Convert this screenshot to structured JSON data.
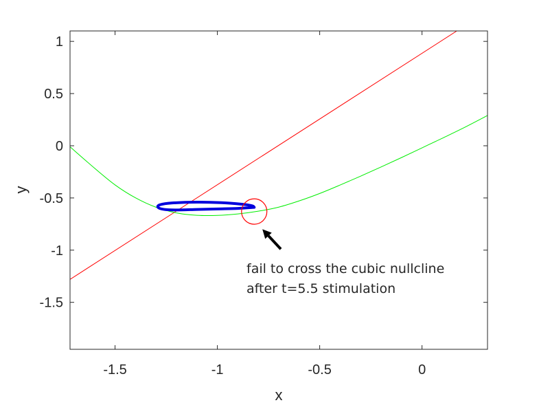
{
  "chart_data": {
    "type": "line",
    "xlabel": "x",
    "ylabel": "y",
    "xlim": [
      -1.72,
      0.32
    ],
    "ylim": [
      -1.95,
      1.1
    ],
    "xticks": [
      -1.5,
      -1,
      -0.5,
      0
    ],
    "xtick_labels": [
      "-1.5",
      "-1",
      "-0.5",
      "0"
    ],
    "yticks": [
      1,
      0.5,
      0,
      -0.5,
      -1,
      -1.5
    ],
    "ytick_labels": [
      "1",
      "0.5",
      "0",
      "-0.5",
      "-1",
      "-1.5"
    ],
    "grid": false,
    "series": [
      {
        "kind": "linear-nullcline",
        "color": "#ff0000",
        "x": [
          -1.72,
          0.17
        ],
        "y": [
          -1.28,
          1.1
        ]
      },
      {
        "kind": "cubic-nullcline",
        "color": "#00ee00",
        "x": [
          -1.72,
          -1.6,
          -1.5,
          -1.4,
          -1.3,
          -1.2,
          -1.1,
          -1.0,
          -0.9,
          -0.8,
          -0.7,
          -0.6,
          -0.5,
          -0.4,
          -0.3,
          -0.2,
          -0.1,
          0.0,
          0.1,
          0.2,
          0.32
        ],
        "y": [
          -0.01,
          -0.215,
          -0.375,
          -0.499,
          -0.589,
          -0.643,
          -0.666,
          -0.667,
          -0.653,
          -0.627,
          -0.588,
          -0.528,
          -0.457,
          -0.376,
          -0.291,
          -0.203,
          -0.113,
          -0.02,
          0.073,
          0.168,
          0.29
        ]
      },
      {
        "kind": "trajectory",
        "color": "#0000dd",
        "x": [
          -0.82,
          -0.9,
          -1.0,
          -1.1,
          -1.2,
          -1.26,
          -1.29,
          -1.28,
          -1.22,
          -1.1,
          -0.98,
          -0.88,
          -0.83,
          -0.82
        ],
        "y": [
          -0.59,
          -0.6,
          -0.605,
          -0.61,
          -0.615,
          -0.61,
          -0.59,
          -0.565,
          -0.548,
          -0.54,
          -0.545,
          -0.56,
          -0.575,
          -0.59
        ]
      }
    ],
    "highlight_circle": {
      "center": {
        "x": -0.82,
        "y": -0.63
      },
      "radius_x": 0.062,
      "color": "#ff0000"
    },
    "arrow": {
      "from": {
        "x": -0.69,
        "y": -0.99
      },
      "to": {
        "x": -0.78,
        "y": -0.8
      },
      "color": "#000000"
    },
    "annotation": {
      "lines": [
        "fail to cross the cubic nullcline",
        "after t=5.5 stimulation"
      ]
    }
  }
}
